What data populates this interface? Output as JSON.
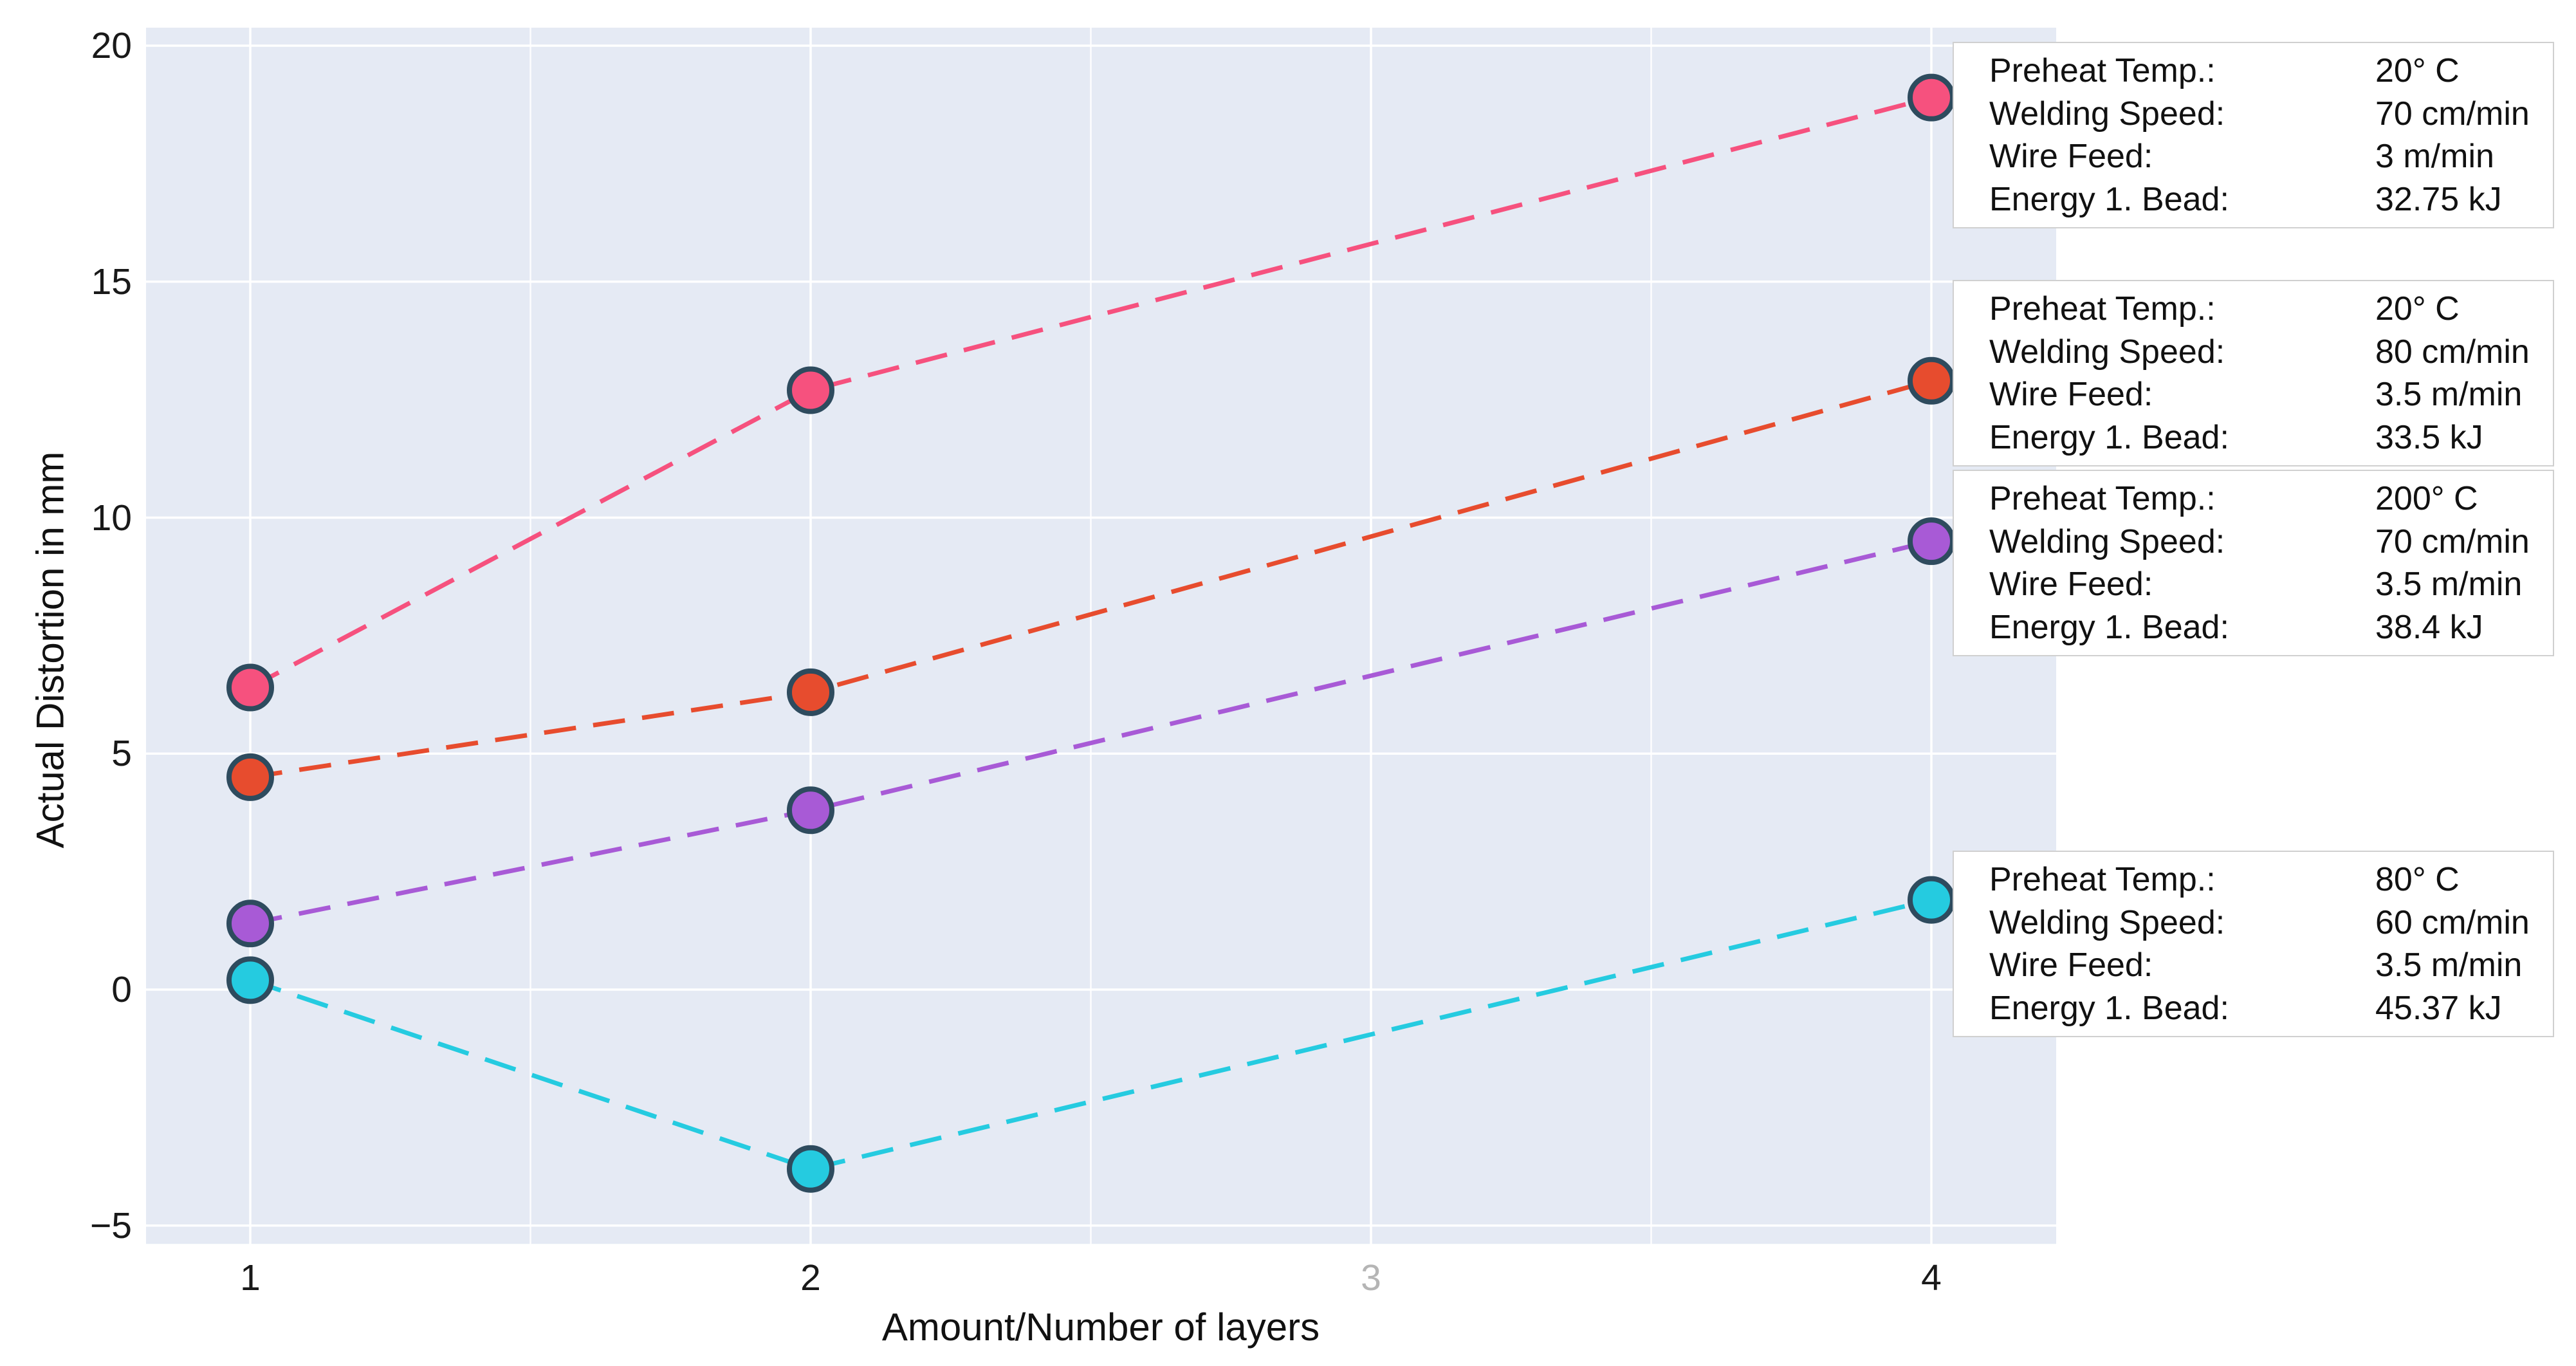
{
  "chart_data": {
    "type": "line",
    "title": "",
    "xlabel": "Amount/Number of layers",
    "ylabel": "Actual Distortion in mm",
    "x": [
      1,
      2,
      4
    ],
    "xlim": [
      0.81,
      4.23
    ],
    "ylim": [
      -5.4,
      20.4
    ],
    "grid": "on",
    "x_gridlines": [
      1,
      1.5,
      2,
      2.5,
      3,
      3.5,
      4
    ],
    "xticks": [
      {
        "t": 1,
        "label": "1",
        "color": "#191919"
      },
      {
        "t": 2,
        "label": "2",
        "color": "#191919"
      },
      {
        "t": 3,
        "label": "3",
        "color": "#b5b5b5"
      },
      {
        "t": 4,
        "label": "4",
        "color": "#191919"
      }
    ],
    "yticks": [
      {
        "v": 20,
        "label": "20"
      },
      {
        "v": 15,
        "label": "15"
      },
      {
        "v": 10,
        "label": "10"
      },
      {
        "v": 5,
        "label": "5"
      },
      {
        "v": 0,
        "label": "0"
      },
      {
        "v": -5,
        "label": "−5"
      }
    ],
    "colors": {
      "plot_bg": "#e5eaf4",
      "gridline": "#ffffff",
      "marker_edge": "#2e4b5e",
      "annotation_border": "#d0d0d0",
      "annotation_bg": "#ffffff",
      "tick_text": "#191919",
      "muted_tick_text": "#b5b5b5"
    },
    "line_style": "dashed",
    "series": [
      {
        "name": "series-pink",
        "color": "#f6517e",
        "values": [
          6.4,
          12.7,
          18.9
        ],
        "annotation": {
          "rows": [
            {
              "label": "Preheat Temp.:",
              "value": "20° C"
            },
            {
              "label": "Welding Speed:",
              "value": "70 cm/min"
            },
            {
              "label": "Wire Feed:",
              "value": "3 m/min"
            },
            {
              "label": "Energy 1. Bead:",
              "value": "32.75 kJ"
            }
          ]
        }
      },
      {
        "name": "series-red",
        "color": "#e74c2e",
        "values": [
          4.5,
          6.3,
          12.9
        ],
        "annotation": {
          "rows": [
            {
              "label": "Preheat Temp.:",
              "value": "20° C"
            },
            {
              "label": "Welding Speed:",
              "value": "80 cm/min"
            },
            {
              "label": "Wire Feed:",
              "value": "3.5 m/min"
            },
            {
              "label": "Energy 1. Bead:",
              "value": "33.5 kJ"
            }
          ]
        }
      },
      {
        "name": "series-purple",
        "color": "#a85ad6",
        "values": [
          1.4,
          3.8,
          9.5
        ],
        "annotation": {
          "rows": [
            {
              "label": "Preheat Temp.:",
              "value": "200° C"
            },
            {
              "label": "Welding Speed:",
              "value": "70 cm/min"
            },
            {
              "label": "Wire Feed:",
              "value": "3.5 m/min"
            },
            {
              "label": "Energy 1. Bead:",
              "value": "38.4 kJ"
            }
          ]
        }
      },
      {
        "name": "series-cyan",
        "color": "#25cbe0",
        "values": [
          0.2,
          -3.8,
          1.9
        ],
        "annotation": {
          "rows": [
            {
              "label": "Preheat Temp.:",
              "value": "80° C"
            },
            {
              "label": "Welding Speed:",
              "value": "60 cm/min"
            },
            {
              "label": "Wire Feed:",
              "value": "3.5 m/min"
            },
            {
              "label": "Energy 1. Bead:",
              "value": "45.37 kJ"
            }
          ]
        }
      }
    ]
  }
}
